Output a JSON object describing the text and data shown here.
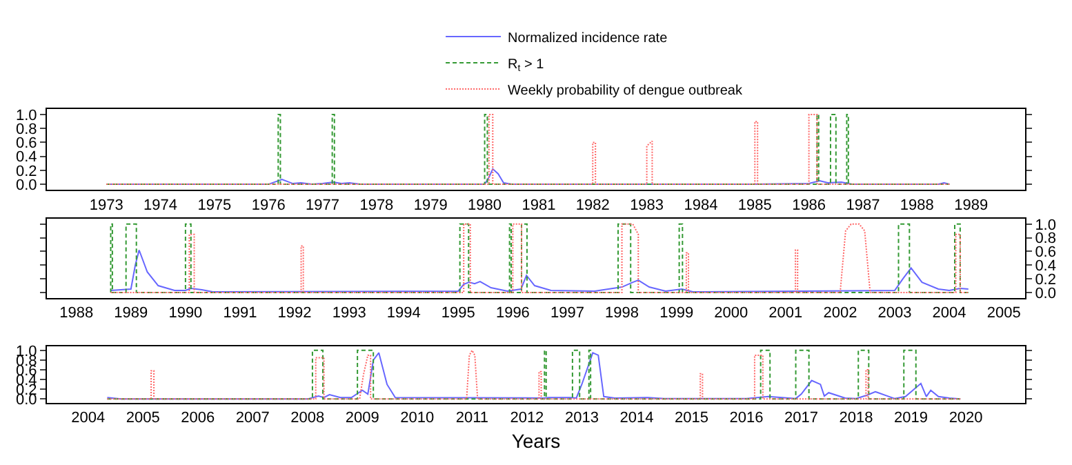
{
  "chart_data": [
    {
      "type": "line",
      "legend": "top",
      "xlim": [
        1971.9,
        1990.0
      ],
      "xticks": [
        1973,
        1974,
        1975,
        1976,
        1977,
        1978,
        1979,
        1980,
        1981,
        1982,
        1983,
        1984,
        1985,
        1986,
        1987,
        1988,
        1989
      ],
      "ylim": [
        -0.08,
        1.08
      ],
      "yticks": [
        {
          "value": 0,
          "label": "0.0"
        },
        {
          "value": 0.2,
          "label": "0.2"
        },
        {
          "value": 0.4,
          "label": "0.4"
        },
        {
          "value": 0.6,
          "label": "0.6"
        },
        {
          "value": 0.8,
          "label": "0.8"
        },
        {
          "value": 1,
          "label": "1.0"
        }
      ],
      "series": [
        {
          "name": "Normalized incidence rate",
          "color": "#6666ff",
          "line_style": "solid",
          "x": [
            1973,
            1976.0,
            1976.25,
            1976.45,
            1976.6,
            1976.8,
            1977.0,
            1977.2,
            1977.35,
            1977.5,
            1977.7,
            1980.0,
            1980.08,
            1980.15,
            1980.25,
            1980.35,
            1980.5,
            1985.0,
            1986.0,
            1986.2,
            1986.35,
            1986.6,
            1986.8,
            1988.4,
            1988.5,
            1988.6
          ],
          "values": [
            0,
            0,
            0.07,
            0.01,
            0.02,
            0,
            0.01,
            0.03,
            0.01,
            0.02,
            0,
            0,
            0.1,
            0.22,
            0.15,
            0.02,
            0,
            0,
            0.01,
            0.05,
            0.02,
            0.03,
            0,
            0,
            0.02,
            0
          ]
        },
        {
          "name": "R$_{t}$ > 1",
          "color": "#339933",
          "line_style": "dashed",
          "x": [
            1973,
            1976.18,
            1976.18,
            1976.22,
            1976.22,
            1977.18,
            1977.18,
            1977.22,
            1977.22,
            1980.0,
            1980.0,
            1980.05,
            1980.05,
            1986.15,
            1986.15,
            1986.18,
            1986.18,
            1986.4,
            1986.4,
            1986.5,
            1986.5,
            1986.7,
            1986.7,
            1986.73,
            1986.73,
            1988.6
          ],
          "values": [
            0,
            0,
            1,
            1,
            0,
            0,
            1,
            1,
            0,
            0,
            1,
            1,
            0,
            0,
            1,
            1,
            0,
            0,
            1,
            1,
            0,
            0,
            1,
            1,
            0,
            0
          ]
        },
        {
          "name": "Weekly probability of dengue outbreak",
          "color": "#ff6666",
          "line_style": "dotted",
          "x": [
            1973,
            1980.08,
            1980.08,
            1980.15,
            1980.15,
            1982.0,
            1982.0,
            1982.05,
            1982.05,
            1983.0,
            1983.0,
            1983.1,
            1983.1,
            1985.0,
            1985.0,
            1985.05,
            1985.05,
            1986.0,
            1986.0,
            1986.15,
            1986.15,
            1988.6
          ],
          "values": [
            0,
            0,
            1,
            1,
            0,
            0,
            0.6,
            0.6,
            0,
            0,
            0.55,
            0.62,
            0,
            0,
            0.9,
            0.9,
            0,
            0,
            1,
            1,
            0,
            0
          ]
        }
      ]
    },
    {
      "type": "line",
      "xlim": [
        1987.46,
        2005.39
      ],
      "xticks": [
        1988,
        1989,
        1990,
        1991,
        1992,
        1993,
        1994,
        1995,
        1996,
        1997,
        1998,
        1999,
        2000,
        2001,
        2002,
        2003,
        2004,
        2005
      ],
      "ylim": [
        -0.08,
        1.08
      ],
      "yticks": [
        {
          "value": 0,
          "label": "0.0"
        },
        {
          "value": 0.2,
          "label": "0.2"
        },
        {
          "value": 0.4,
          "label": "0.4"
        },
        {
          "value": 0.6,
          "label": "0.6"
        },
        {
          "value": 0.8,
          "label": "0.8"
        },
        {
          "value": 1,
          "label": "1.0"
        }
      ],
      "series": [
        {
          "color": "#6666ff",
          "line_style": "solid",
          "x": [
            1988.63,
            1989.0,
            1989.08,
            1989.15,
            1989.3,
            1989.5,
            1989.8,
            1990.0,
            1990.1,
            1990.3,
            1990.5,
            1995.0,
            1995.1,
            1995.2,
            1995.3,
            1995.4,
            1995.6,
            1995.9,
            1996.15,
            1996.25,
            1996.4,
            1996.7,
            1997.5,
            1998.0,
            1998.2,
            1998.3,
            1998.5,
            1998.8,
            1999.1,
            1999.3,
            2003.0,
            2003.15,
            2003.3,
            2003.5,
            2003.8,
            2004.0,
            2004.2,
            2004.35
          ],
          "values": [
            0.03,
            0.05,
            0.4,
            0.62,
            0.3,
            0.1,
            0.03,
            0.03,
            0.06,
            0.04,
            0.01,
            0.02,
            0.12,
            0.15,
            0.13,
            0.16,
            0.07,
            0.02,
            0.05,
            0.25,
            0.1,
            0.03,
            0.02,
            0.08,
            0.15,
            0.18,
            0.08,
            0.02,
            0.05,
            0.01,
            0.03,
            0.2,
            0.36,
            0.15,
            0.05,
            0.03,
            0.06,
            0.05
          ]
        },
        {
          "color": "#339933",
          "line_style": "dashed",
          "x": [
            1988.63,
            1988.63,
            1988.66,
            1988.66,
            1988.91,
            1988.91,
            1989.1,
            1989.1,
            1990.0,
            1990.0,
            1990.1,
            1990.1,
            1995.03,
            1995.03,
            1995.19,
            1995.19,
            1995.94,
            1995.94,
            1995.97,
            1995.97,
            1996.16,
            1996.16,
            1996.26,
            1996.26,
            1997.93,
            1997.93,
            1998.16,
            1998.16,
            1999.05,
            1999.05,
            1999.11,
            1999.11,
            2003.07,
            2003.07,
            2003.27,
            2003.27,
            2004.1,
            2004.1,
            2004.2,
            2004.2,
            2004.35
          ],
          "values": [
            0,
            1,
            1,
            0,
            0,
            1,
            1,
            0,
            0,
            1,
            1,
            0,
            0,
            1,
            1,
            0,
            0,
            1,
            1,
            0,
            0,
            1,
            1,
            0,
            0,
            1,
            1,
            0,
            0,
            1,
            1,
            0,
            0,
            1,
            1,
            0,
            0,
            1,
            1,
            0,
            0
          ]
        },
        {
          "color": "#ff6666",
          "line_style": "dotted",
          "x": [
            1988.63,
            1990.07,
            1990.07,
            1990.16,
            1990.16,
            1992.12,
            1992.12,
            1992.16,
            1992.16,
            1995.1,
            1995.1,
            1995.22,
            1995.22,
            1996.0,
            1996.0,
            1996.16,
            1996.16,
            1998.0,
            1998.0,
            1998.2,
            1998.3,
            1998.3,
            1999.18,
            1999.18,
            1999.22,
            1999.22,
            2001.18,
            2001.18,
            2001.22,
            2001.22,
            2002.0,
            2002.1,
            2002.2,
            2002.35,
            2002.45,
            2002.55,
            2004.12,
            2004.12,
            2004.2,
            2004.2,
            2004.35
          ],
          "values": [
            0,
            0,
            0.85,
            0.85,
            0,
            0,
            0.68,
            0.68,
            0,
            0,
            1,
            1,
            0,
            0,
            1,
            1,
            0,
            0,
            1,
            1,
            0.85,
            0,
            0,
            0.58,
            0.58,
            0,
            0,
            0.62,
            0.62,
            0,
            0,
            0.9,
            1,
            1,
            0.9,
            0,
            0,
            0.85,
            0.85,
            0,
            0
          ]
        }
      ]
    },
    {
      "type": "line",
      "xlabel": "Years",
      "xlim": [
        2003.25,
        2021.08
      ],
      "xticks": [
        2004,
        2005,
        2006,
        2007,
        2008,
        2009,
        2010,
        2011,
        2012,
        2013,
        2014,
        2015,
        2016,
        2017,
        2018,
        2019,
        2020
      ],
      "ylim": [
        -0.08,
        1.08
      ],
      "yticks": [
        {
          "value": 0,
          "label": "0.0"
        },
        {
          "value": 0.2,
          "label": "0.2"
        },
        {
          "value": 0.4,
          "label": "0.4"
        },
        {
          "value": 0.6,
          "label": "0.6"
        },
        {
          "value": 0.8,
          "label": "0.8"
        },
        {
          "value": 1,
          "label": "1.0"
        }
      ],
      "series": [
        {
          "color": "#6666ff",
          "line_style": "solid",
          "x": [
            2004.35,
            2004.6,
            2008.0,
            2008.2,
            2008.3,
            2008.4,
            2008.6,
            2008.8,
            2009.0,
            2009.1,
            2009.2,
            2009.3,
            2009.45,
            2009.6,
            2012.3,
            2012.4,
            2012.8,
            2012.9,
            2013.0,
            2013.2,
            2013.3,
            2013.4,
            2013.6,
            2014.2,
            2014.5,
            2016.0,
            2016.4,
            2016.9,
            2017.0,
            2017.19,
            2017.35,
            2017.42,
            2017.5,
            2017.8,
            2018.0,
            2018.2,
            2018.35,
            2018.6,
            2018.7,
            2018.9,
            2019.18,
            2019.28,
            2019.36,
            2019.5,
            2019.7,
            2019.9
          ],
          "values": [
            0.03,
            0,
            0,
            0.06,
            0.03,
            0.09,
            0.03,
            0.03,
            0.18,
            0.1,
            0.8,
            0.95,
            0.3,
            0.03,
            0.02,
            0.03,
            0.03,
            0.02,
            0.3,
            0.95,
            0.9,
            0.05,
            0.02,
            0.03,
            0.01,
            0.01,
            0.05,
            0.01,
            0.1,
            0.38,
            0.3,
            0.06,
            0.13,
            0.02,
            0.01,
            0.08,
            0.15,
            0.05,
            0.01,
            0.05,
            0.32,
            0.05,
            0.18,
            0.05,
            0.02,
            0
          ]
        },
        {
          "color": "#339933",
          "line_style": "dashed",
          "x": [
            2004.35,
            2008.09,
            2008.09,
            2008.28,
            2008.28,
            2008.91,
            2008.91,
            2009.2,
            2009.2,
            2012.32,
            2012.32,
            2012.35,
            2012.35,
            2012.83,
            2012.83,
            2012.96,
            2012.96,
            2013.13,
            2013.13,
            2013.16,
            2013.16,
            2016.26,
            2016.26,
            2016.43,
            2016.43,
            2016.9,
            2016.9,
            2017.14,
            2017.14,
            2018.04,
            2018.04,
            2018.23,
            2018.23,
            2018.87,
            2018.87,
            2019.09,
            2019.09,
            2019.9
          ],
          "values": [
            0,
            0,
            1,
            1,
            0,
            0,
            1,
            1,
            0,
            0,
            1,
            1,
            0,
            0,
            1,
            1,
            0,
            0,
            1,
            1,
            0,
            0,
            1,
            1,
            0,
            0,
            1,
            1,
            0,
            0,
            1,
            1,
            0,
            0,
            1,
            1,
            0,
            0
          ]
        },
        {
          "color": "#ff6666",
          "line_style": "dotted",
          "x": [
            2004.35,
            2005.15,
            2005.15,
            2005.2,
            2005.2,
            2008.15,
            2008.15,
            2008.3,
            2008.3,
            2008.95,
            2009.02,
            2009.1,
            2009.15,
            2009.15,
            2010.9,
            2010.95,
            2011.0,
            2011.05,
            2011.1,
            2012.22,
            2012.22,
            2012.26,
            2012.26,
            2015.16,
            2015.16,
            2015.2,
            2015.2,
            2016.15,
            2016.15,
            2016.3,
            2016.3,
            2018.18,
            2018.18,
            2018.22,
            2018.22,
            2019.9
          ],
          "values": [
            0,
            0,
            0.58,
            0.58,
            0,
            0,
            0.85,
            0.85,
            0,
            0,
            0.5,
            0.9,
            0.9,
            0,
            0,
            0.9,
            1,
            0.9,
            0,
            0,
            0.56,
            0.56,
            0,
            0,
            0.52,
            0.52,
            0,
            0,
            0.9,
            0.9,
            0,
            0,
            0.6,
            0.6,
            0,
            0
          ]
        }
      ]
    }
  ]
}
